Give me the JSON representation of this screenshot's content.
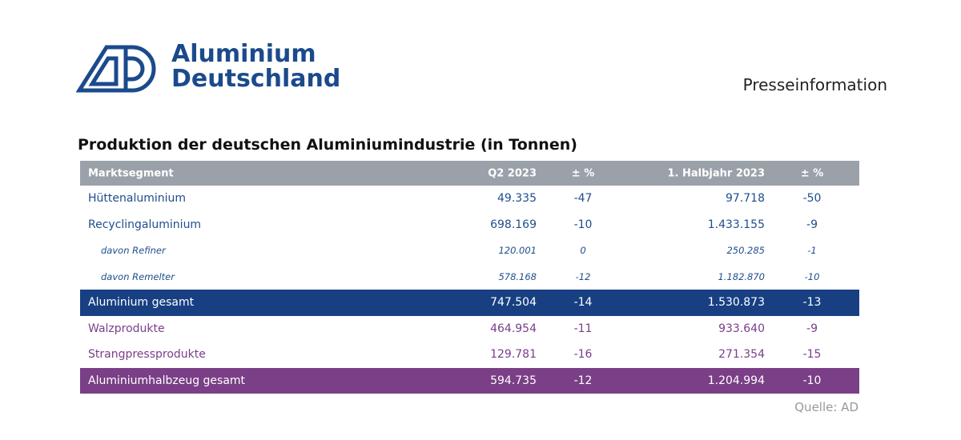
{
  "header": {
    "logo": [
      "Aluminium",
      "Deutschland"
    ],
    "label": "Presseinformation"
  },
  "title": "Produktion der deutschen Aluminiumindustrie (in Tonnen)",
  "table": {
    "columns": [
      "Marktsegment",
      "Q2 2023",
      "± %",
      "1. Halbjahr 2023",
      "± %"
    ],
    "rows": [
      [
        "Hüttenaluminium",
        "49.335",
        "-47",
        "97.718",
        "-50"
      ],
      [
        "Recyclingaluminium",
        "698.169",
        "-10",
        "1.433.155",
        "-9"
      ],
      [
        "davon Refiner",
        "120.001",
        "0",
        "250.285",
        "-1"
      ],
      [
        "davon Remelter",
        "578.168",
        "-12",
        "1.182.870",
        "-10"
      ],
      [
        "Aluminium gesamt",
        "747.504",
        "-14",
        "1.530.873",
        "-13"
      ],
      [
        "Walzprodukte",
        "464.954",
        "-11",
        "933.640",
        "-9"
      ],
      [
        "Strangpressprodukte",
        "129.781",
        "-16",
        "271.354",
        "-15"
      ],
      [
        "Aluminiumhalbzeug gesamt",
        "594.735",
        "-12",
        "1.204.994",
        "-10"
      ]
    ]
  },
  "source": "Quelle: AD"
}
